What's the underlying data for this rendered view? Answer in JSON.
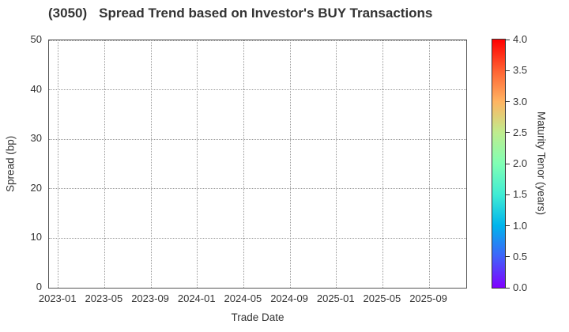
{
  "chart": {
    "title_code": "(3050)",
    "title_text": "Spread Trend based on Investor's BUY Transactions",
    "xlabel": "Trade Date",
    "ylabel": "Spread (bp)",
    "colorbar_label": "Maturity Tenor (years)"
  },
  "chart_data": {
    "type": "scatter",
    "title": "(3050) Spread Trend based on Investor's BUY Transactions",
    "xlabel": "Trade Date",
    "ylabel": "Spread (bp)",
    "x_tick_labels": [
      "2023-01",
      "2023-05",
      "2023-09",
      "2024-01",
      "2024-05",
      "2024-09",
      "2025-01",
      "2025-05",
      "2025-09"
    ],
    "x_tick_months": [
      0,
      4,
      8,
      12,
      16,
      20,
      24,
      28,
      32
    ],
    "x_range_months": [
      -0.8,
      35.2
    ],
    "y_ticks": [
      0,
      10,
      20,
      30,
      40,
      50
    ],
    "y_range": [
      0,
      50
    ],
    "grid": true,
    "grid_style": "dotted",
    "series": [],
    "colorbar": {
      "label": "Maturity Tenor (years)",
      "tick_labels": [
        "0.0",
        "0.5",
        "1.0",
        "1.5",
        "2.0",
        "2.5",
        "3.0",
        "3.5",
        "4.0"
      ],
      "range": [
        0,
        4
      ],
      "colormap": "rainbow",
      "gradient_stops_bottom_to_top": [
        "#8000FF",
        "#4062FA",
        "#00B4EC",
        "#40ECD4",
        "#80FFB4",
        "#BFEC8E",
        "#FFB462",
        "#FF6232",
        "#FF0000"
      ]
    }
  },
  "colors": {
    "text": "#333333",
    "spine": "#555555",
    "grid": "#999999",
    "background": "#ffffff"
  }
}
